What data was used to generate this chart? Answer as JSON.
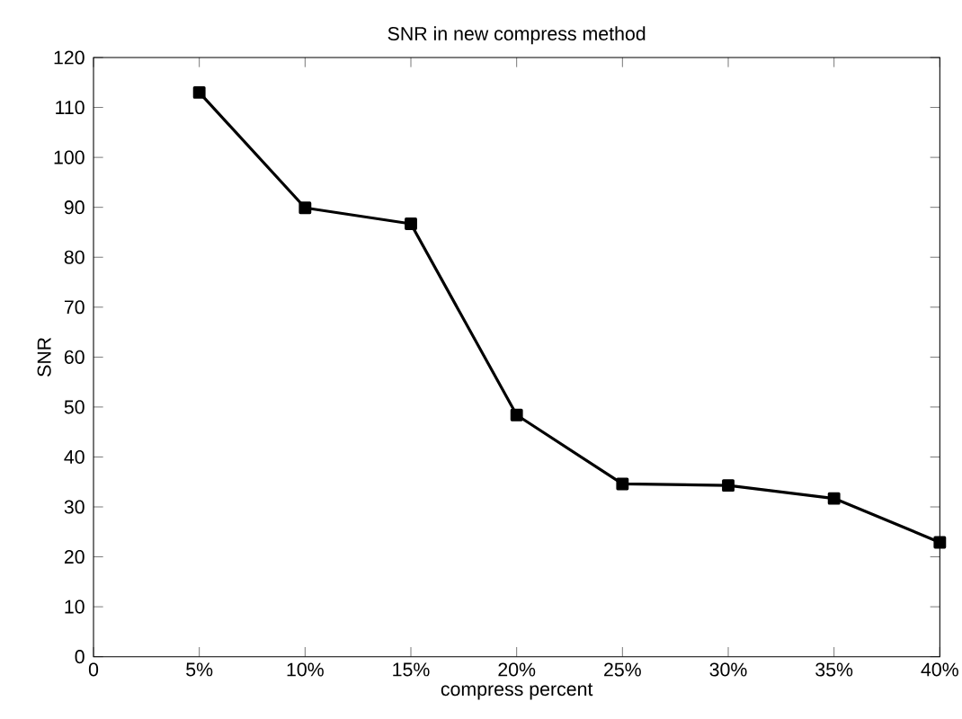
{
  "chart_data": {
    "type": "line",
    "title": "SNR in new compress method",
    "xlabel": "compress percent",
    "ylabel": "SNR",
    "x": [
      5,
      10,
      15,
      20,
      25,
      30,
      35,
      40
    ],
    "series": [
      {
        "color": "#000000",
        "values": [
          113,
          89.9,
          86.7,
          48.4,
          34.6,
          34.3,
          31.7,
          22.9
        ]
      }
    ],
    "xlim": [
      0,
      40
    ],
    "xticks": [
      0,
      {
        "value": 5,
        "label": "5%"
      },
      {
        "value": 10,
        "label": "10%"
      },
      {
        "value": 15,
        "label": "15%"
      },
      {
        "value": 20,
        "label": "20%"
      },
      {
        "value": 25,
        "label": "25%"
      },
      {
        "value": 30,
        "label": "30%"
      },
      {
        "value": 35,
        "label": "35%"
      },
      {
        "value": 40,
        "label": "40%"
      }
    ],
    "ylim": [
      0,
      120
    ],
    "yticks": [
      0,
      10,
      20,
      30,
      40,
      50,
      60,
      70,
      80,
      90,
      100,
      110,
      120
    ],
    "marker": "square",
    "line_style": "solid"
  }
}
